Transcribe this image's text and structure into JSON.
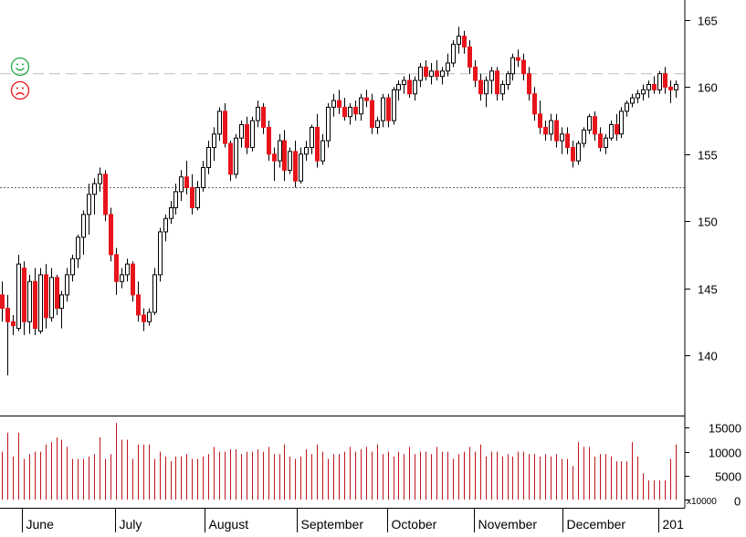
{
  "chart_data": {
    "type": "candlestick",
    "price_axis": {
      "ylim": [
        135.5,
        166.5
      ],
      "ticks": [
        140,
        145,
        150,
        155,
        160,
        165
      ]
    },
    "volume_axis": {
      "ylim": [
        0,
        17000
      ],
      "ticks": [
        0,
        5000,
        10000,
        15000
      ],
      "multiplier_label": "x10000"
    },
    "months": [
      "June",
      "July",
      "August",
      "September",
      "October",
      "November",
      "December",
      "201"
    ],
    "reference_lines": {
      "dashed": 161.0,
      "dotted": 152.5
    },
    "colors": {
      "up_body": "#ffffff",
      "down_body": "#e8141b",
      "outline": "#000000",
      "volume": "#c0141b",
      "happy": "#27a844",
      "sad": "#e8141b"
    },
    "candles": [
      [
        144.5,
        145.5,
        142.5,
        143.5
      ],
      [
        143.5,
        144.5,
        138.5,
        142.5
      ],
      [
        142.5,
        143.0,
        141.5,
        142.2
      ],
      [
        142.0,
        147.5,
        141.8,
        146.8
      ],
      [
        146.5,
        147.0,
        141.5,
        142.5
      ],
      [
        142.5,
        146.0,
        141.6,
        145.5
      ],
      [
        145.5,
        146.5,
        141.5,
        142.0
      ],
      [
        141.8,
        146.5,
        141.6,
        146.0
      ],
      [
        146.0,
        146.8,
        142.0,
        142.8
      ],
      [
        142.8,
        146.5,
        142.5,
        145.8
      ],
      [
        145.8,
        146.0,
        143.0,
        143.5
      ],
      [
        143.5,
        144.8,
        142.0,
        144.5
      ],
      [
        144.5,
        146.5,
        144.0,
        146.0
      ],
      [
        146.0,
        147.5,
        145.5,
        147.2
      ],
      [
        147.2,
        149.0,
        146.5,
        148.8
      ],
      [
        148.8,
        150.8,
        147.5,
        150.5
      ],
      [
        150.5,
        152.8,
        149.0,
        152.0
      ],
      [
        152.0,
        153.2,
        150.5,
        152.8
      ],
      [
        152.8,
        154.0,
        152.2,
        153.5
      ],
      [
        153.5,
        153.8,
        150.0,
        150.5
      ],
      [
        150.5,
        151.0,
        147.0,
        147.5
      ],
      [
        147.5,
        148.0,
        144.5,
        145.5
      ],
      [
        145.5,
        146.5,
        145.0,
        146.0
      ],
      [
        146.0,
        147.2,
        145.5,
        146.8
      ],
      [
        146.8,
        147.0,
        144.0,
        144.5
      ],
      [
        144.5,
        145.5,
        142.5,
        143.0
      ],
      [
        143.0,
        143.5,
        141.8,
        142.5
      ],
      [
        142.5,
        143.5,
        142.2,
        143.2
      ],
      [
        143.2,
        146.5,
        143.0,
        146.0
      ],
      [
        146.0,
        149.5,
        145.5,
        149.2
      ],
      [
        149.2,
        150.5,
        148.5,
        150.2
      ],
      [
        150.2,
        151.5,
        149.8,
        151.0
      ],
      [
        151.0,
        152.8,
        150.5,
        152.2
      ],
      [
        152.2,
        153.8,
        151.5,
        153.3
      ],
      [
        153.3,
        154.5,
        152.0,
        152.5
      ],
      [
        152.5,
        153.5,
        150.5,
        151.0
      ],
      [
        151.0,
        153.0,
        150.8,
        152.5
      ],
      [
        152.5,
        154.5,
        152.2,
        154.0
      ],
      [
        154.0,
        156.0,
        153.5,
        155.5
      ],
      [
        155.5,
        157.0,
        154.5,
        156.5
      ],
      [
        156.5,
        158.5,
        156.0,
        158.2
      ],
      [
        158.2,
        158.8,
        155.5,
        155.8
      ],
      [
        155.8,
        156.0,
        153.0,
        153.5
      ],
      [
        153.5,
        156.5,
        153.2,
        156.2
      ],
      [
        156.2,
        157.5,
        155.5,
        157.2
      ],
      [
        157.2,
        157.8,
        155.0,
        155.5
      ],
      [
        155.5,
        157.8,
        155.2,
        157.5
      ],
      [
        157.5,
        159.0,
        157.0,
        158.5
      ],
      [
        158.5,
        158.8,
        156.5,
        157.0
      ],
      [
        157.0,
        157.5,
        154.5,
        155.0
      ],
      [
        155.0,
        155.5,
        153.0,
        154.5
      ],
      [
        154.5,
        156.5,
        154.0,
        156.0
      ],
      [
        156.0,
        156.8,
        153.0,
        153.8
      ],
      [
        153.8,
        155.5,
        153.5,
        155.2
      ],
      [
        155.2,
        156.0,
        152.5,
        153.0
      ],
      [
        153.0,
        155.5,
        152.8,
        155.0
      ],
      [
        155.0,
        156.0,
        154.5,
        155.5
      ],
      [
        155.5,
        157.2,
        155.0,
        157.0
      ],
      [
        157.0,
        158.0,
        154.0,
        154.5
      ],
      [
        154.5,
        156.5,
        154.2,
        156.0
      ],
      [
        156.0,
        158.8,
        155.5,
        158.5
      ],
      [
        158.5,
        159.5,
        157.8,
        159.0
      ],
      [
        159.0,
        159.8,
        158.0,
        158.5
      ],
      [
        158.5,
        159.2,
        157.5,
        157.8
      ],
      [
        157.8,
        158.8,
        157.2,
        158.5
      ],
      [
        158.5,
        159.0,
        157.5,
        158.0
      ],
      [
        158.0,
        159.5,
        157.5,
        159.2
      ],
      [
        159.2,
        159.8,
        158.5,
        159.0
      ],
      [
        159.0,
        159.5,
        156.5,
        157.0
      ],
      [
        157.0,
        157.8,
        156.5,
        157.5
      ],
      [
        157.5,
        159.5,
        157.0,
        159.2
      ],
      [
        159.2,
        159.5,
        157.0,
        157.5
      ],
      [
        157.5,
        160.0,
        157.2,
        159.8
      ],
      [
        159.8,
        160.5,
        159.0,
        160.2
      ],
      [
        160.2,
        160.8,
        159.5,
        160.5
      ],
      [
        160.5,
        161.0,
        159.2,
        159.5
      ],
      [
        159.5,
        160.8,
        159.0,
        160.5
      ],
      [
        160.5,
        161.8,
        160.0,
        161.5
      ],
      [
        161.5,
        162.0,
        160.5,
        160.8
      ],
      [
        160.8,
        161.8,
        160.2,
        161.2
      ],
      [
        161.2,
        162.0,
        160.5,
        160.8
      ],
      [
        160.8,
        161.5,
        160.2,
        161.2
      ],
      [
        161.2,
        162.5,
        160.8,
        161.8
      ],
      [
        161.8,
        163.5,
        161.5,
        163.2
      ],
      [
        163.2,
        164.5,
        162.5,
        163.8
      ],
      [
        163.8,
        164.2,
        162.5,
        163.0
      ],
      [
        163.0,
        163.5,
        161.0,
        161.5
      ],
      [
        161.5,
        162.0,
        160.0,
        160.5
      ],
      [
        160.5,
        161.0,
        159.0,
        159.5
      ],
      [
        159.5,
        160.8,
        158.5,
        160.5
      ],
      [
        160.5,
        161.5,
        159.5,
        161.2
      ],
      [
        161.2,
        161.5,
        159.0,
        159.5
      ],
      [
        159.5,
        160.5,
        159.0,
        160.2
      ],
      [
        160.2,
        161.2,
        159.8,
        161.0
      ],
      [
        161.0,
        162.5,
        160.5,
        162.2
      ],
      [
        162.2,
        162.8,
        161.5,
        162.0
      ],
      [
        162.0,
        162.5,
        160.5,
        161.0
      ],
      [
        161.0,
        161.5,
        159.0,
        159.5
      ],
      [
        159.5,
        160.0,
        157.5,
        158.0
      ],
      [
        158.0,
        159.0,
        156.5,
        157.0
      ],
      [
        157.0,
        157.5,
        156.0,
        156.5
      ],
      [
        156.5,
        158.0,
        156.0,
        157.5
      ],
      [
        157.5,
        158.0,
        155.5,
        156.0
      ],
      [
        156.0,
        157.0,
        155.0,
        156.5
      ],
      [
        156.5,
        157.0,
        155.0,
        155.5
      ],
      [
        155.5,
        156.0,
        154.0,
        154.5
      ],
      [
        154.5,
        156.0,
        154.2,
        155.8
      ],
      [
        155.8,
        157.0,
        155.5,
        156.8
      ],
      [
        156.8,
        158.0,
        156.5,
        157.8
      ],
      [
        157.8,
        158.2,
        156.0,
        156.5
      ],
      [
        156.5,
        157.0,
        155.2,
        155.5
      ],
      [
        155.5,
        156.5,
        155.0,
        156.2
      ],
      [
        156.2,
        157.5,
        156.0,
        157.2
      ],
      [
        157.2,
        158.0,
        156.0,
        156.5
      ],
      [
        156.5,
        158.5,
        156.2,
        158.2
      ],
      [
        158.2,
        159.0,
        157.8,
        158.8
      ],
      [
        158.8,
        159.5,
        158.5,
        159.2
      ],
      [
        159.2,
        159.8,
        158.8,
        159.5
      ],
      [
        159.5,
        160.2,
        159.0,
        159.8
      ],
      [
        159.8,
        160.5,
        159.2,
        160.2
      ],
      [
        160.2,
        160.8,
        159.5,
        159.8
      ],
      [
        159.8,
        161.2,
        159.5,
        161.0
      ],
      [
        161.0,
        161.5,
        159.5,
        160.0
      ],
      [
        160.0,
        160.5,
        158.8,
        159.8
      ],
      [
        159.8,
        160.5,
        159.2,
        160.2
      ]
    ],
    "volumes": [
      10000,
      14000,
      9000,
      14000,
      8500,
      9500,
      10000,
      10000,
      11500,
      12000,
      13000,
      12500,
      11000,
      8500,
      8500,
      8500,
      9000,
      9500,
      13000,
      8500,
      9500,
      16000,
      12500,
      12500,
      8500,
      11500,
      11500,
      11500,
      8500,
      10000,
      9000,
      8000,
      9000,
      9000,
      9500,
      8500,
      8500,
      9000,
      9500,
      11000,
      10000,
      10000,
      10500,
      10500,
      9500,
      10000,
      10000,
      10500,
      10000,
      11000,
      9500,
      9500,
      11500,
      9000,
      8500,
      9000,
      10500,
      9500,
      11500,
      10000,
      8500,
      9500,
      9500,
      10000,
      11000,
      10000,
      10500,
      11000,
      10000,
      11500,
      9500,
      10000,
      9000,
      10000,
      9500,
      11000,
      9500,
      10000,
      10000,
      9500,
      11000,
      10000,
      10000,
      8500,
      9500,
      10000,
      11000,
      10000,
      11500,
      9000,
      10000,
      10000,
      9000,
      9500,
      9000,
      10000,
      10000,
      9500,
      9500,
      9000,
      9500,
      9000,
      9500,
      8500,
      8500,
      7000,
      12000,
      11000,
      11000,
      9000,
      9500,
      9500,
      9000,
      8000,
      8000,
      8000,
      12000,
      9000,
      5500,
      4000,
      4000,
      4000,
      4000,
      8500,
      11500
    ]
  }
}
